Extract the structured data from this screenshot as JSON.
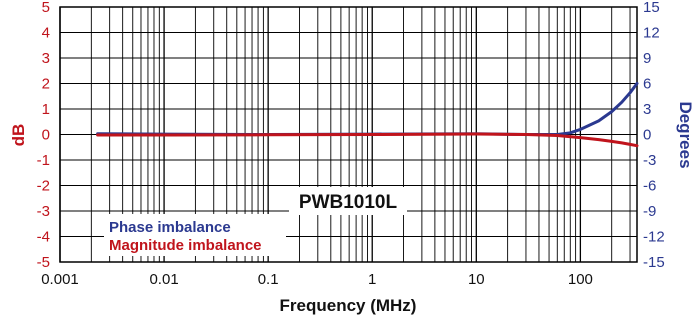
{
  "chart_data": {
    "type": "line",
    "title": "PWB1010L",
    "xlabel": "Frequency (MHz)",
    "ylabel_left": "dB",
    "ylabel_right": "Degrees",
    "x_scale": "log",
    "xlim": [
      0.001,
      350
    ],
    "x_tick_labels": [
      "0.001",
      "0.01",
      "0.1",
      "1",
      "10",
      "100"
    ],
    "ylim_left": [
      -5,
      5
    ],
    "ylim_right": [
      -15,
      15
    ],
    "y_left_tick_labels": [
      "5",
      "4",
      "3",
      "2",
      "1",
      "0",
      "-1",
      "-2",
      "-3",
      "-4",
      "-5"
    ],
    "y_right_tick_labels": [
      "15",
      "12",
      "9",
      "6",
      "3",
      "0",
      "-3",
      "-6",
      "-9",
      "-12",
      "-15"
    ],
    "grid": true,
    "legend_position": "bottom-left",
    "colors": {
      "magnitude": "#c0141c",
      "phase": "#2b3990"
    },
    "series": [
      {
        "name": "Phase imbalance",
        "axis": "right",
        "x": [
          0.0023,
          0.01,
          0.1,
          1,
          10,
          30,
          60,
          80,
          100,
          150,
          200,
          250,
          300,
          350
        ],
        "y": [
          0.1,
          0.05,
          0.0,
          0.05,
          0.1,
          0.0,
          0.0,
          0.2,
          0.6,
          1.6,
          2.7,
          3.8,
          4.9,
          6.0
        ]
      },
      {
        "name": "Magnitude imbalance",
        "axis": "left",
        "x": [
          0.0023,
          0.01,
          0.1,
          1,
          10,
          30,
          60,
          100,
          150,
          200,
          250,
          300,
          350
        ],
        "y": [
          -0.02,
          -0.02,
          -0.01,
          0.0,
          0.02,
          0.0,
          -0.04,
          -0.12,
          -0.2,
          -0.27,
          -0.33,
          -0.39,
          -0.44
        ]
      }
    ]
  }
}
